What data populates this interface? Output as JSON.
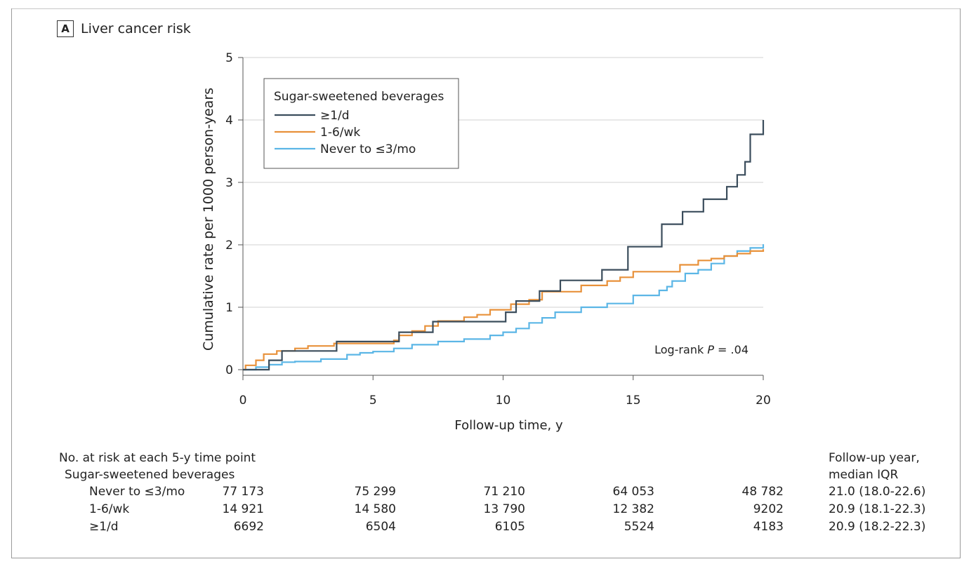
{
  "panel": {
    "letter": "A",
    "title": "Liver cancer risk"
  },
  "chart_data": {
    "type": "line",
    "xlabel": "Follow-up time, y",
    "ylabel": "Cumulative rate per 1000 person-years",
    "xlim": [
      0,
      20
    ],
    "ylim": [
      0,
      5
    ],
    "xticks": [
      "0",
      "5",
      "10",
      "15",
      "20"
    ],
    "yticks": [
      "0",
      "1",
      "2",
      "3",
      "4",
      "5"
    ],
    "grid": "horizontal",
    "legend": {
      "title": "Sugar-sweetened beverages",
      "placement": "top-left"
    },
    "annotation": {
      "prefix": "Log-rank ",
      "italic": "P",
      "suffix": " = .04"
    },
    "series": [
      {
        "name": "≥1/d",
        "color": "#3b4d5c",
        "x": [
          0,
          0.9,
          1.0,
          1.4,
          1.5,
          2.0,
          3.5,
          3.6,
          5.9,
          6.0,
          7.2,
          7.3,
          10.0,
          10.1,
          10.4,
          10.5,
          11.3,
          11.4,
          12.1,
          12.2,
          13.7,
          13.8,
          14.7,
          14.8,
          16.0,
          16.1,
          16.8,
          16.9,
          17.6,
          17.7,
          18.5,
          18.6,
          18.9,
          19.0,
          19.2,
          19.3,
          19.45,
          19.5,
          19.9,
          20.0
        ],
        "y": [
          0,
          0,
          0.15,
          0.15,
          0.3,
          0.3,
          0.3,
          0.45,
          0.45,
          0.6,
          0.6,
          0.77,
          0.77,
          0.92,
          0.92,
          1.1,
          1.1,
          1.26,
          1.26,
          1.43,
          1.43,
          1.6,
          1.6,
          1.97,
          1.97,
          2.33,
          2.33,
          2.53,
          2.53,
          2.73,
          2.73,
          2.93,
          2.93,
          3.12,
          3.12,
          3.33,
          3.33,
          3.77,
          3.77,
          4.0
        ]
      },
      {
        "name": "1-6/wk",
        "color": "#e8913a",
        "x": [
          0,
          0.1,
          0.5,
          0.8,
          1.3,
          2.0,
          2.5,
          3.5,
          5.0,
          5.8,
          6.0,
          6.5,
          7.0,
          7.5,
          8.5,
          9.0,
          9.5,
          10.3,
          11.0,
          11.5,
          13.0,
          14.0,
          14.5,
          15.0,
          16.5,
          16.8,
          17.5,
          18.0,
          18.5,
          19.0,
          19.5,
          20.0
        ],
        "y": [
          0,
          0.07,
          0.15,
          0.25,
          0.3,
          0.34,
          0.38,
          0.42,
          0.42,
          0.47,
          0.55,
          0.62,
          0.7,
          0.78,
          0.84,
          0.88,
          0.96,
          1.05,
          1.12,
          1.25,
          1.35,
          1.42,
          1.48,
          1.57,
          1.57,
          1.68,
          1.75,
          1.78,
          1.82,
          1.86,
          1.9,
          1.93
        ]
      },
      {
        "name": "Never to ≤3/mo",
        "color": "#5bb6e6",
        "x": [
          0,
          0.5,
          1.0,
          1.5,
          2.0,
          3.0,
          4.0,
          4.5,
          5.0,
          5.8,
          6.5,
          7.5,
          8.5,
          9.5,
          10.0,
          10.5,
          11.0,
          11.5,
          12.0,
          13.0,
          14.0,
          15.0,
          16.0,
          16.3,
          16.5,
          17.0,
          17.5,
          18.0,
          18.5,
          19.0,
          19.5,
          20.0
        ],
        "y": [
          0,
          0.04,
          0.08,
          0.12,
          0.13,
          0.17,
          0.24,
          0.27,
          0.29,
          0.34,
          0.4,
          0.45,
          0.49,
          0.55,
          0.6,
          0.66,
          0.75,
          0.83,
          0.92,
          1.0,
          1.06,
          1.19,
          1.27,
          1.33,
          1.42,
          1.54,
          1.6,
          1.7,
          1.82,
          1.9,
          1.95,
          2.01
        ]
      }
    ]
  },
  "risk_table": {
    "title": "No. at risk at each 5-y time point",
    "group_label": "Sugar-sweetened beverages",
    "followup_header": [
      "Follow-up year,",
      "median IQR"
    ],
    "rows": [
      {
        "label": "Never to ≤3/mo",
        "values": [
          "77 173",
          "75 299",
          "71 210",
          "64 053",
          "48 782"
        ],
        "followup": "21.0 (18.0-22.6)"
      },
      {
        "label": "1-6/wk",
        "values": [
          "14 921",
          "14 580",
          "13 790",
          "12 382",
          "9202"
        ],
        "followup": "20.9 (18.1-22.3)"
      },
      {
        "label": "≥1/d",
        "values": [
          "6692",
          "6504",
          "6105",
          "5524",
          "4183"
        ],
        "followup": "20.9 (18.2-22.3)"
      }
    ]
  }
}
